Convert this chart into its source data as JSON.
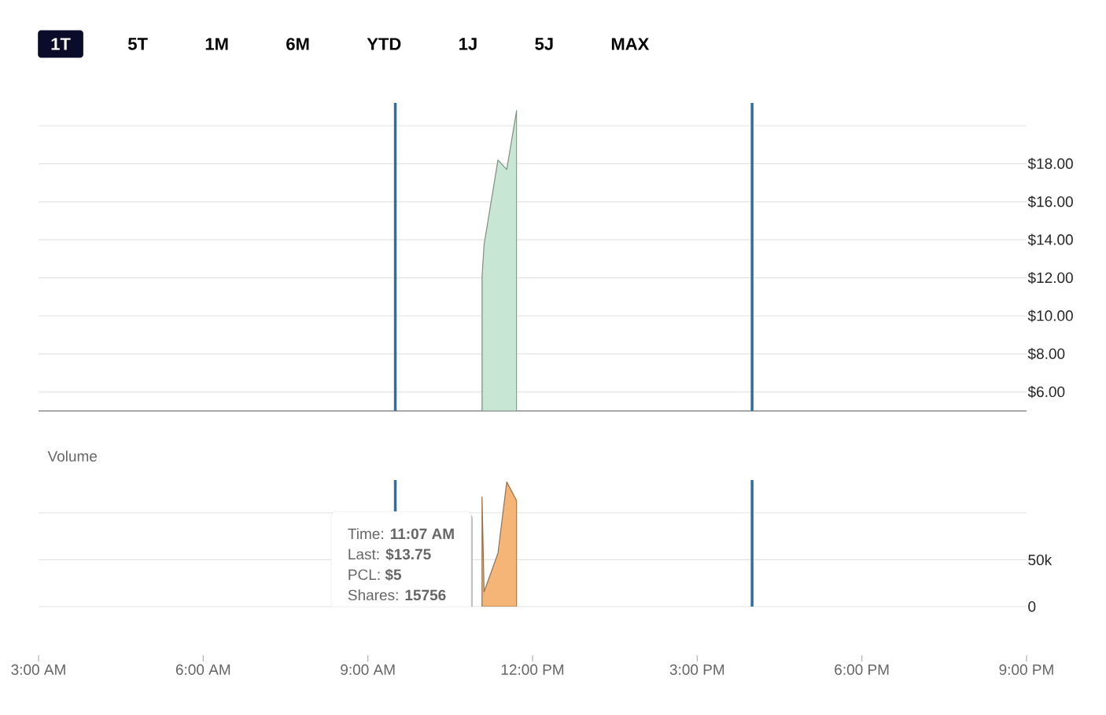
{
  "chart_data": [
    {
      "type": "area",
      "annotations": [
        "1T",
        "5T",
        "1M",
        "6M",
        "YTD",
        "1J",
        "5J",
        "MAX"
      ],
      "x": [
        11.08,
        11.117,
        11.37,
        11.53,
        11.71
      ],
      "series": [
        {
          "color": "#c8e6d4",
          "values": [
            12.05,
            13.75,
            18.2,
            17.7,
            20.8
          ]
        }
      ],
      "xlim": [
        3,
        21
      ],
      "ylim": [
        5,
        21.2
      ],
      "yticks": [
        {
          "value": 6,
          "label": "$6.00"
        },
        {
          "value": 8,
          "label": "$8.00"
        },
        {
          "value": 10,
          "label": "$10.00"
        },
        {
          "value": 12,
          "label": "$12.00"
        },
        {
          "value": 14,
          "label": "$14.00"
        },
        {
          "value": 16,
          "label": "$16.00"
        },
        {
          "value": 18,
          "label": "$18.00"
        },
        {
          "value": 20,
          "label": null
        }
      ],
      "grid": "y",
      "tick_labels": "y",
      "ref_lines": [
        {
          "axis": "x",
          "value": 9.5,
          "color": "#2e6f9e"
        },
        {
          "axis": "x",
          "value": 16,
          "color": "#2e6f9e"
        }
      ]
    },
    {
      "type": "area",
      "title": "Volume",
      "annotations": [
        "Time: **11:07 AM**",
        "Last: **$13.75**",
        "PCL: **$5**",
        "Shares: **15756**"
      ],
      "x": [
        11.08,
        11.117,
        11.37,
        11.53,
        11.71
      ],
      "series": [
        {
          "color": "#f4b577",
          "values": [
            117000,
            15756,
            57000,
            133000,
            113000
          ]
        }
      ],
      "xlim": [
        3,
        21
      ],
      "xticks": [
        {
          "value": 3,
          "label": "3:00 AM"
        },
        {
          "value": 6,
          "label": "6:00 AM"
        },
        {
          "value": 9,
          "label": "9:00 AM"
        },
        {
          "value": 12,
          "label": "12:00 PM"
        },
        {
          "value": 15,
          "label": "3:00 PM"
        },
        {
          "value": 18,
          "label": "6:00 PM"
        },
        {
          "value": 21,
          "label": "9:00 PM"
        }
      ],
      "ylim": [
        0,
        135000
      ],
      "yticks": [
        {
          "value": 0,
          "label": "0"
        },
        {
          "value": 50000,
          "label": "50k"
        },
        {
          "value": 100000,
          "label": null
        }
      ],
      "grid": "y",
      "ref_lines": [
        {
          "axis": "x",
          "value": 9.5,
          "color": "#2e6f9e"
        },
        {
          "axis": "x",
          "value": 16,
          "color": "#2e6f9e"
        }
      ]
    }
  ]
}
